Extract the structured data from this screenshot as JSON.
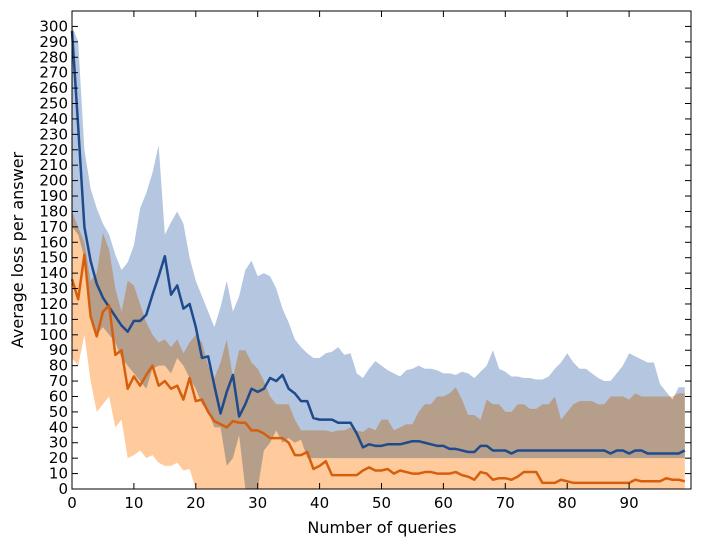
{
  "chart_data": {
    "type": "line",
    "title": "",
    "xlabel": "Number of queries",
    "ylabel": "Average loss per answer",
    "xlim": [
      0,
      100
    ],
    "ylim": [
      0,
      310
    ],
    "x_ticks": [
      0,
      10,
      20,
      30,
      40,
      50,
      60,
      70,
      80,
      90
    ],
    "y_ticks": [
      0,
      10,
      20,
      30,
      40,
      50,
      60,
      70,
      80,
      90,
      100,
      110,
      120,
      130,
      140,
      150,
      160,
      170,
      180,
      190,
      200,
      210,
      220,
      230,
      240,
      250,
      260,
      270,
      280,
      290,
      300
    ],
    "x": [
      0,
      1,
      2,
      3,
      4,
      5,
      6,
      7,
      8,
      9,
      10,
      11,
      12,
      13,
      14,
      15,
      16,
      17,
      18,
      19,
      20,
      21,
      22,
      23,
      24,
      25,
      26,
      27,
      28,
      29,
      30,
      31,
      32,
      33,
      34,
      35,
      36,
      37,
      38,
      39,
      40,
      41,
      42,
      43,
      44,
      45,
      46,
      47,
      48,
      49,
      50,
      51,
      52,
      53,
      54,
      55,
      56,
      57,
      58,
      59,
      60,
      61,
      62,
      63,
      64,
      65,
      66,
      67,
      68,
      69,
      70,
      71,
      72,
      73,
      74,
      75,
      76,
      77,
      78,
      79,
      80,
      81,
      82,
      83,
      84,
      85,
      86,
      87,
      88,
      89,
      90,
      91,
      92,
      93,
      94,
      95,
      96,
      97,
      98,
      99
    ],
    "series": [
      {
        "name": "blue",
        "color": "#1f4a8c",
        "band_color": "#b5c6e0",
        "values": [
          297,
          235,
          170,
          148,
          133,
          124,
          118,
          112,
          106,
          102,
          109,
          109,
          113,
          126,
          138,
          151,
          126,
          132,
          117,
          120,
          105,
          85,
          86,
          67,
          49,
          63,
          74,
          47,
          55,
          65,
          63,
          65,
          72,
          70,
          74,
          65,
          62,
          57,
          57,
          46,
          45,
          45,
          45,
          43,
          43,
          43,
          36,
          27,
          29,
          28,
          28,
          29,
          29,
          29,
          30,
          31,
          31,
          30,
          29,
          28,
          28,
          26,
          26,
          25,
          24,
          24,
          28,
          28,
          25,
          25,
          25,
          23,
          25,
          25,
          25,
          25,
          25,
          25,
          25,
          25,
          25,
          25,
          25,
          25,
          25,
          25,
          25,
          23,
          25,
          25,
          23,
          25,
          25,
          23,
          23,
          23,
          23,
          23,
          23,
          25
        ],
        "upper": [
          300,
          290,
          220,
          195,
          182,
          172,
          165,
          152,
          142,
          147,
          158,
          182,
          192,
          205,
          223,
          165,
          173,
          180,
          172,
          150,
          135,
          125,
          115,
          105,
          118,
          135,
          115,
          125,
          142,
          148,
          138,
          140,
          138,
          130,
          117,
          108,
          97,
          92,
          88,
          85,
          85,
          88,
          89,
          92,
          87,
          88,
          75,
          72,
          78,
          83,
          80,
          77,
          75,
          73,
          77,
          78,
          80,
          78,
          78,
          77,
          75,
          75,
          74,
          76,
          75,
          72,
          76,
          80,
          90,
          78,
          76,
          73,
          73,
          72,
          72,
          71,
          71,
          73,
          78,
          82,
          88,
          82,
          78,
          78,
          75,
          72,
          70,
          70,
          75,
          80,
          88,
          86,
          84,
          82,
          82,
          68,
          63,
          58,
          66,
          66
        ],
        "lower": [
          170,
          165,
          150,
          110,
          100,
          105,
          100,
          95,
          85,
          80,
          75,
          70,
          65,
          78,
          80,
          80,
          75,
          85,
          80,
          72,
          65,
          55,
          50,
          40,
          40,
          15,
          20,
          35,
          0,
          0,
          0,
          25,
          30,
          38,
          30,
          33,
          30,
          32,
          20,
          20,
          20,
          20,
          20,
          20,
          20,
          20,
          20,
          20,
          20,
          20,
          20,
          20,
          20,
          20,
          20,
          20,
          20,
          20,
          20,
          20,
          20,
          20,
          20,
          20,
          20,
          20,
          20,
          20,
          20,
          20,
          20,
          20,
          20,
          20,
          20,
          20,
          20,
          20,
          20,
          20,
          20,
          20,
          20,
          20,
          20,
          20,
          20,
          20,
          20,
          20,
          20,
          20,
          20,
          20,
          20,
          20,
          20,
          20,
          20,
          20
        ]
      },
      {
        "name": "orange",
        "color": "#d65f0e",
        "band_color": "#ffa85c",
        "values": [
          136,
          123,
          152,
          112,
          99,
          115,
          119,
          87,
          90,
          65,
          73,
          67,
          74,
          80,
          67,
          70,
          65,
          67,
          58,
          72,
          57,
          58,
          50,
          44,
          42,
          40,
          44,
          43,
          43,
          38,
          38,
          36,
          33,
          33,
          33,
          30,
          22,
          22,
          24,
          13,
          15,
          18,
          9,
          9,
          9,
          9,
          9,
          12,
          14,
          12,
          12,
          13,
          10,
          12,
          11,
          10,
          10,
          11,
          11,
          10,
          10,
          10,
          11,
          9,
          8,
          6,
          11,
          10,
          6,
          7,
          7,
          6,
          8,
          11,
          11,
          11,
          4,
          4,
          4,
          6,
          5,
          4,
          4,
          4,
          4,
          4,
          4,
          4,
          4,
          4,
          4,
          6,
          5,
          5,
          5,
          5,
          7,
          6,
          6,
          5
        ],
        "upper": [
          180,
          170,
          160,
          135,
          140,
          166,
          155,
          130,
          115,
          135,
          132,
          120,
          108,
          100,
          95,
          97,
          92,
          97,
          88,
          95,
          100,
          95,
          80,
          72,
          82,
          97,
          72,
          90,
          90,
          82,
          78,
          70,
          60,
          55,
          55,
          55,
          45,
          38,
          38,
          38,
          38,
          38,
          37,
          38,
          38,
          40,
          38,
          37,
          40,
          38,
          45,
          45,
          38,
          40,
          42,
          42,
          50,
          55,
          55,
          60,
          60,
          62,
          66,
          58,
          48,
          48,
          45,
          58,
          55,
          55,
          50,
          50,
          55,
          55,
          52,
          52,
          55,
          55,
          60,
          45,
          50,
          55,
          57,
          57,
          57,
          55,
          55,
          60,
          60,
          60,
          58,
          62,
          60,
          60,
          60,
          60,
          60,
          60,
          62,
          62
        ],
        "lower": [
          85,
          80,
          100,
          70,
          50,
          55,
          60,
          40,
          45,
          20,
          22,
          25,
          20,
          22,
          17,
          15,
          15,
          17,
          12,
          13,
          0,
          0,
          0,
          0,
          0,
          0,
          0,
          0,
          0,
          0,
          0,
          0,
          0,
          0,
          0,
          0,
          0,
          0,
          0,
          0,
          0,
          0,
          0,
          0,
          0,
          0,
          0,
          0,
          0,
          0,
          0,
          0,
          0,
          0,
          0,
          0,
          0,
          0,
          0,
          0,
          0,
          0,
          0,
          0,
          0,
          0,
          0,
          0,
          0,
          0,
          0,
          0,
          0,
          0,
          0,
          0,
          0,
          0,
          0,
          0,
          0,
          0,
          0,
          0,
          0,
          0,
          0,
          0,
          0,
          0,
          0,
          0,
          0,
          0,
          0,
          0,
          0,
          0,
          0,
          0
        ]
      }
    ]
  }
}
